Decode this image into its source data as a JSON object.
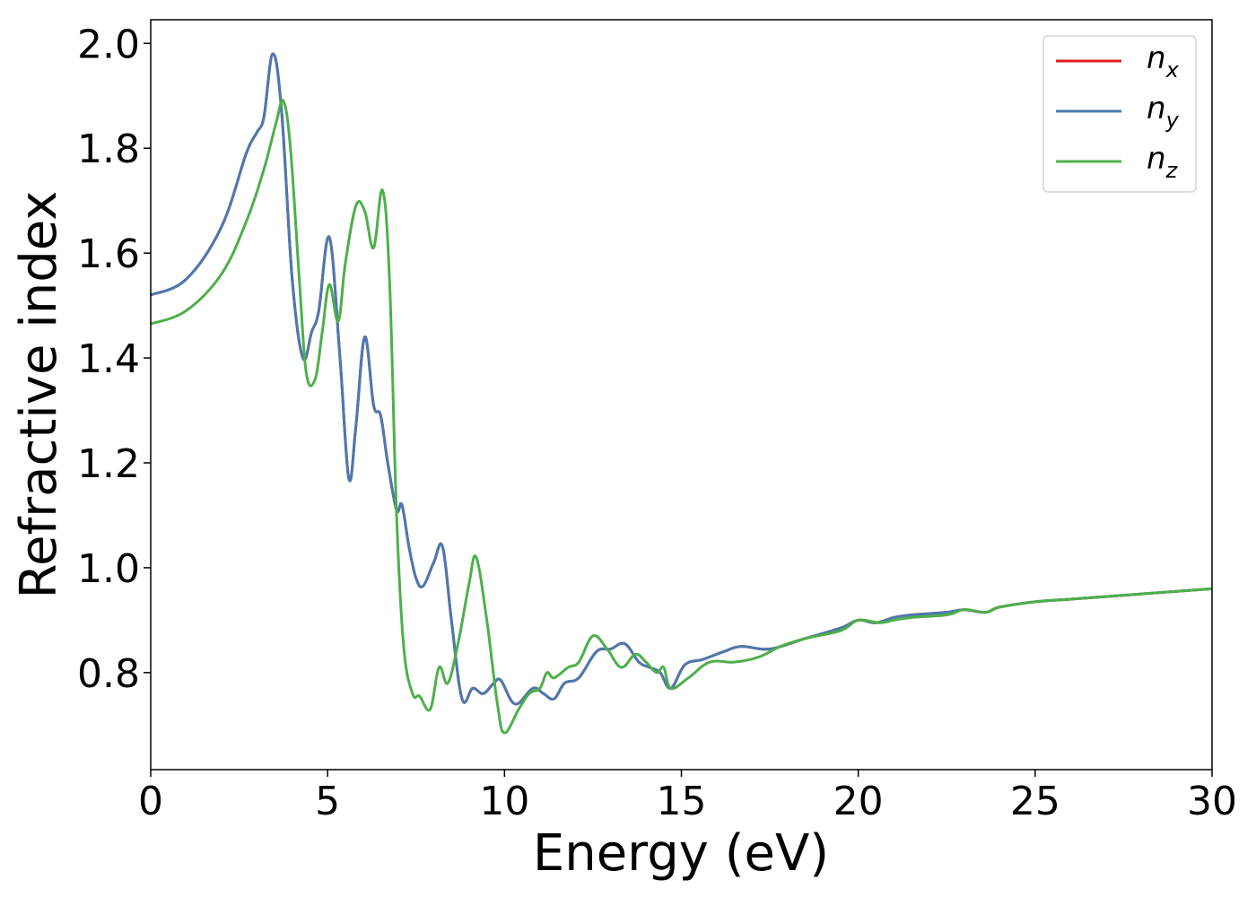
{
  "chart_data": {
    "type": "line",
    "xlabel": "Energy (eV)",
    "ylabel": "Refractive index",
    "xlim": [
      0,
      30
    ],
    "ylim": [
      0.615,
      2.045
    ],
    "xticks": [
      0,
      5,
      10,
      15,
      20,
      25,
      30
    ],
    "xtick_labels": [
      "0",
      "5",
      "10",
      "15",
      "20",
      "25",
      "30"
    ],
    "yticks": [
      0.8,
      1.0,
      1.2,
      1.4,
      1.6,
      1.8,
      2.0
    ],
    "ytick_labels": [
      "0.8",
      "1.0",
      "1.2",
      "1.4",
      "1.6",
      "1.8",
      "2.0"
    ],
    "grid": false,
    "legend_position": "top-right",
    "series": [
      {
        "name": "n",
        "subscript": "x",
        "color": "#e41a1c",
        "x": [
          0,
          1,
          2,
          2.7,
          3.0,
          3.2,
          3.45,
          3.7,
          4.0,
          4.3,
          4.55,
          4.75,
          5.05,
          5.35,
          5.6,
          5.8,
          6.05,
          6.3,
          6.5,
          6.7,
          6.95,
          7.1,
          7.3,
          7.5,
          7.7,
          8.0,
          8.25,
          8.5,
          8.8,
          9.1,
          9.4,
          9.7,
          9.9,
          10.3,
          10.8,
          11.1,
          11.4,
          11.7,
          12.1,
          12.6,
          13.0,
          13.4,
          13.8,
          14.1,
          14.4,
          14.7,
          15.1,
          15.6,
          16.2,
          16.7,
          17.5,
          18.5,
          19.5,
          20.0,
          20.5,
          21.0,
          21.5,
          22.5,
          23.0,
          23.6,
          24.0,
          25.0,
          26.0,
          27.0,
          28.0,
          29.0,
          30.0
        ],
        "y": [
          1.52,
          1.55,
          1.65,
          1.79,
          1.83,
          1.86,
          1.98,
          1.87,
          1.55,
          1.4,
          1.45,
          1.49,
          1.63,
          1.4,
          1.17,
          1.27,
          1.44,
          1.31,
          1.29,
          1.2,
          1.11,
          1.12,
          1.04,
          0.98,
          0.965,
          1.01,
          1.04,
          0.9,
          0.75,
          0.77,
          0.76,
          0.78,
          0.785,
          0.74,
          0.77,
          0.76,
          0.75,
          0.78,
          0.79,
          0.84,
          0.845,
          0.855,
          0.82,
          0.81,
          0.8,
          0.77,
          0.815,
          0.825,
          0.84,
          0.85,
          0.845,
          0.865,
          0.885,
          0.9,
          0.895,
          0.905,
          0.91,
          0.915,
          0.92,
          0.915,
          0.925,
          0.935,
          0.94,
          0.945,
          0.95,
          0.955,
          0.96
        ]
      },
      {
        "name": "n",
        "subscript": "y",
        "color": "#4a79b0",
        "x": [
          0,
          1,
          2,
          2.7,
          3.0,
          3.2,
          3.45,
          3.7,
          4.0,
          4.3,
          4.55,
          4.75,
          5.05,
          5.35,
          5.6,
          5.8,
          6.05,
          6.3,
          6.5,
          6.7,
          6.95,
          7.1,
          7.3,
          7.5,
          7.7,
          8.0,
          8.25,
          8.5,
          8.8,
          9.1,
          9.4,
          9.7,
          9.9,
          10.3,
          10.8,
          11.1,
          11.4,
          11.7,
          12.1,
          12.6,
          13.0,
          13.4,
          13.8,
          14.1,
          14.4,
          14.7,
          15.1,
          15.6,
          16.2,
          16.7,
          17.5,
          18.5,
          19.5,
          20.0,
          20.5,
          21.0,
          21.5,
          22.5,
          23.0,
          23.6,
          24.0,
          25.0,
          26.0,
          27.0,
          28.0,
          29.0,
          30.0
        ],
        "y": [
          1.52,
          1.55,
          1.65,
          1.79,
          1.83,
          1.86,
          1.98,
          1.87,
          1.55,
          1.4,
          1.45,
          1.49,
          1.63,
          1.4,
          1.17,
          1.27,
          1.44,
          1.31,
          1.29,
          1.2,
          1.11,
          1.12,
          1.04,
          0.98,
          0.965,
          1.01,
          1.04,
          0.9,
          0.75,
          0.77,
          0.76,
          0.78,
          0.785,
          0.74,
          0.77,
          0.76,
          0.75,
          0.78,
          0.79,
          0.84,
          0.845,
          0.855,
          0.82,
          0.81,
          0.8,
          0.77,
          0.815,
          0.825,
          0.84,
          0.85,
          0.845,
          0.865,
          0.885,
          0.9,
          0.895,
          0.905,
          0.91,
          0.915,
          0.92,
          0.915,
          0.925,
          0.935,
          0.94,
          0.945,
          0.95,
          0.955,
          0.96
        ]
      },
      {
        "name": "n",
        "subscript": "z",
        "color": "#4daf4a",
        "x": [
          0,
          1,
          2,
          2.7,
          3.2,
          3.55,
          3.75,
          3.95,
          4.2,
          4.4,
          4.65,
          4.85,
          5.05,
          5.3,
          5.5,
          5.8,
          6.05,
          6.3,
          6.55,
          6.75,
          6.95,
          7.15,
          7.4,
          7.6,
          7.9,
          8.15,
          8.4,
          8.7,
          9.0,
          9.2,
          9.5,
          9.8,
          10.0,
          10.4,
          10.7,
          11.0,
          11.2,
          11.4,
          11.8,
          12.1,
          12.5,
          12.9,
          13.3,
          13.7,
          14.0,
          14.3,
          14.5,
          14.7,
          15.2,
          15.8,
          16.5,
          17.2,
          17.8,
          18.5,
          19.5,
          20.0,
          20.6,
          21.0,
          21.5,
          22.5,
          23.0,
          23.6,
          24.0,
          25.0,
          26.0,
          27.0,
          28.0,
          29.0,
          30.0
        ],
        "y": [
          1.465,
          1.49,
          1.56,
          1.66,
          1.76,
          1.85,
          1.89,
          1.8,
          1.55,
          1.37,
          1.36,
          1.45,
          1.54,
          1.47,
          1.58,
          1.69,
          1.68,
          1.61,
          1.72,
          1.55,
          1.1,
          0.85,
          0.76,
          0.755,
          0.73,
          0.81,
          0.78,
          0.86,
          0.97,
          1.02,
          0.9,
          0.74,
          0.685,
          0.73,
          0.76,
          0.77,
          0.8,
          0.79,
          0.81,
          0.82,
          0.87,
          0.845,
          0.81,
          0.835,
          0.82,
          0.8,
          0.81,
          0.77,
          0.79,
          0.82,
          0.82,
          0.83,
          0.85,
          0.865,
          0.88,
          0.9,
          0.895,
          0.9,
          0.905,
          0.91,
          0.92,
          0.915,
          0.925,
          0.935,
          0.94,
          0.945,
          0.95,
          0.955,
          0.96
        ]
      }
    ]
  }
}
